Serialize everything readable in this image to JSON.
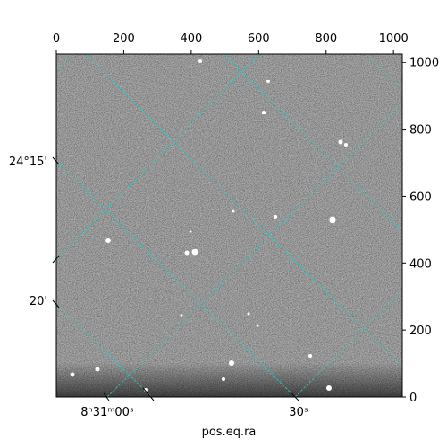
{
  "chart_data": {
    "type": "image",
    "xlabel": "pos.eq.ra",
    "xlim": [
      0,
      1026
    ],
    "ylim": [
      0,
      1026
    ],
    "xticks": [
      0,
      200,
      400,
      600,
      800,
      1000
    ],
    "yticks": [
      0,
      200,
      400,
      600,
      800,
      1000
    ],
    "ra_ticks": [
      "8ʰ31ᵐ00ˢ",
      "30ˢ"
    ],
    "dec_ticks": [
      "24°15'",
      "20'"
    ]
  }
}
